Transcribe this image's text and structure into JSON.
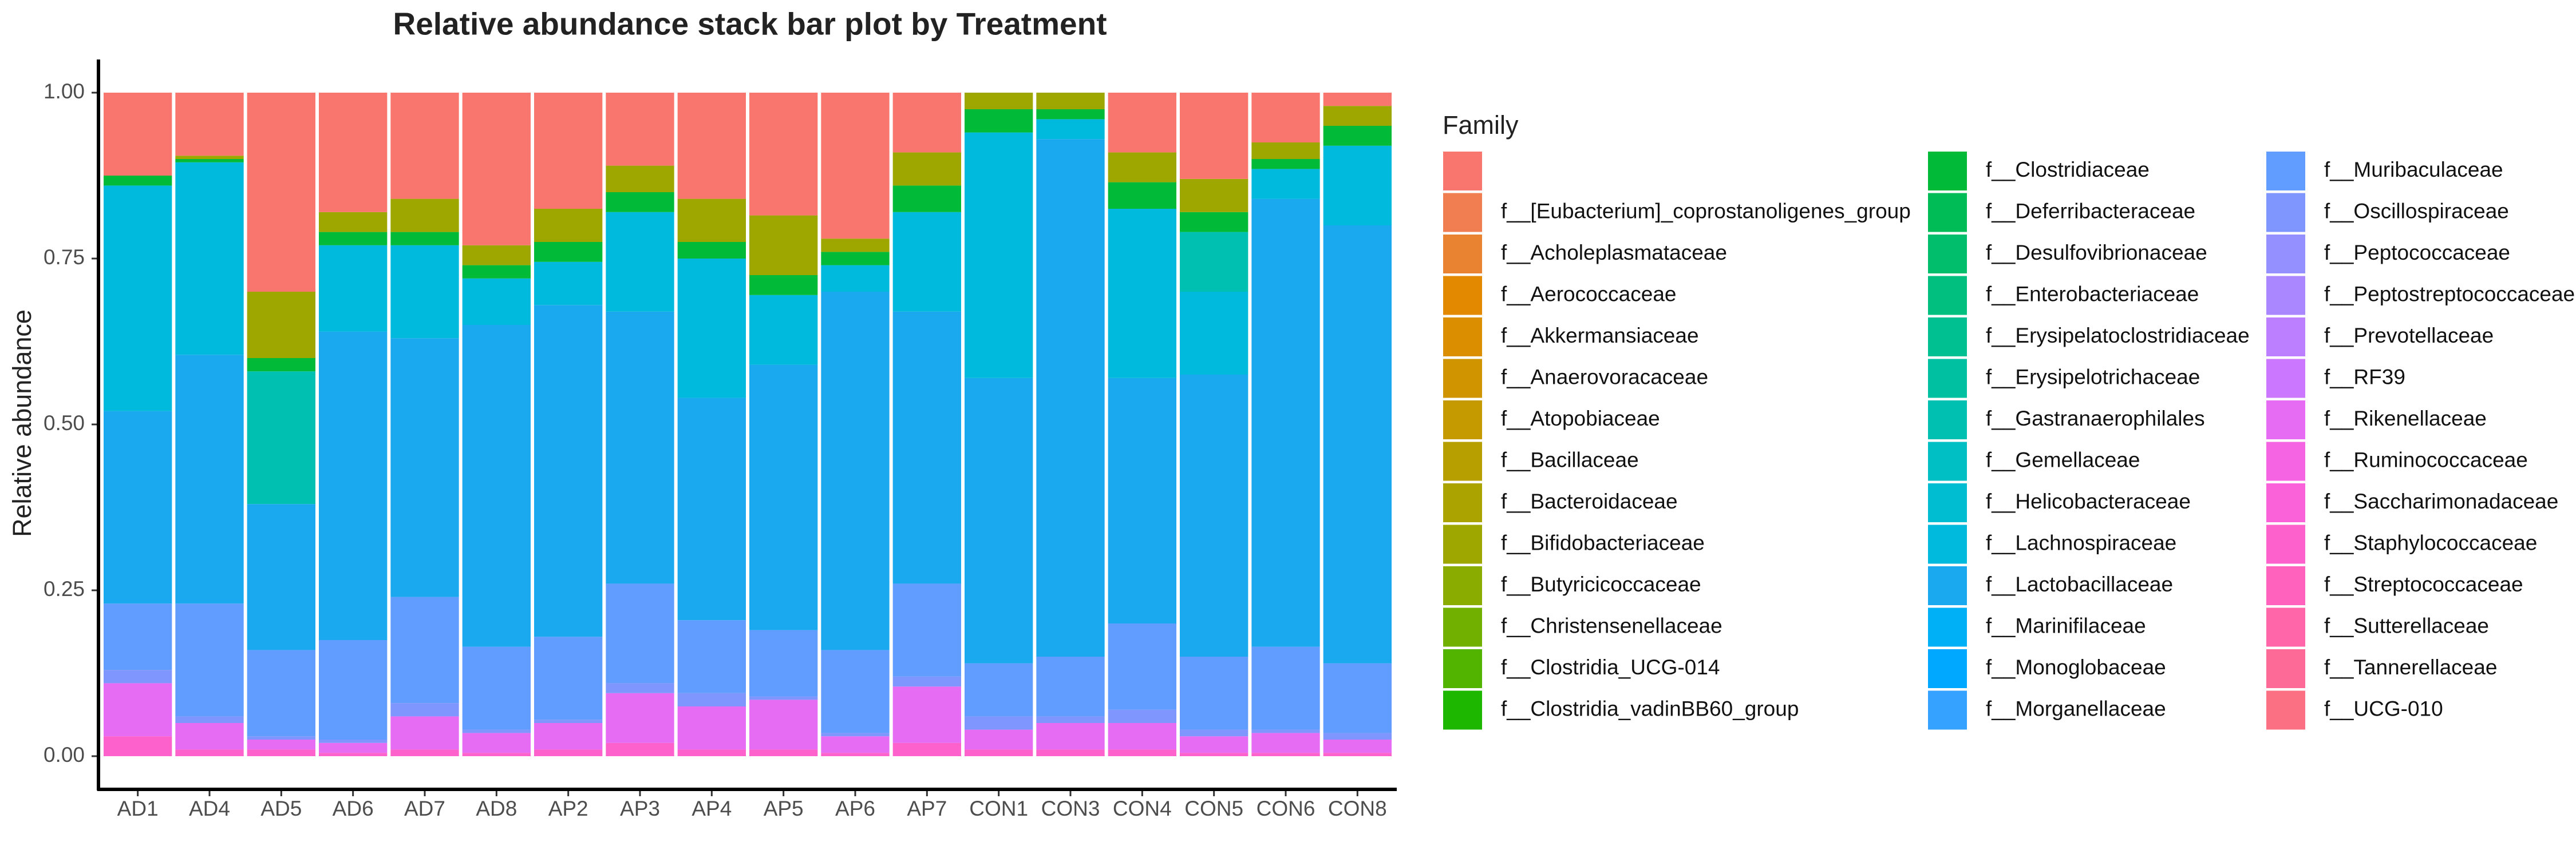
{
  "chart_data": {
    "type": "stacked_bar",
    "title": "Relative abundance stack bar plot by Treatment",
    "y_label": "Relative abundance",
    "legend_title": "Family",
    "categories": [
      "AD1",
      "AD4",
      "AD5",
      "AD6",
      "AD7",
      "AD8",
      "AP2",
      "AP3",
      "AP4",
      "AP5",
      "AP6",
      "AP7",
      "CON1",
      "CON3",
      "CON4",
      "CON5",
      "CON6",
      "CON8"
    ],
    "ylim": [
      -0.05,
      1.05
    ],
    "yticks": [
      {
        "value": 0,
        "label": "0.00"
      },
      {
        "value": 0.25,
        "label": "0.25"
      },
      {
        "value": 0.5,
        "label": "0.50"
      },
      {
        "value": 0.75,
        "label": "0.75"
      },
      {
        "value": 1,
        "label": "1.00"
      }
    ],
    "series": [
      {
        "name": null,
        "color": "#F8766D",
        "values": [
          0.125,
          0.095,
          0.3,
          0.18,
          0.16,
          0.23,
          0.175,
          0.11,
          0.16,
          0.185,
          0.22,
          0.09,
          0,
          0,
          0.09,
          0.13,
          0.075,
          0.02
        ]
      },
      {
        "name": "f__[Eubacterium]_coprostanoligenes_group",
        "color": "#F07E50",
        "values": [
          0,
          0,
          0,
          0,
          0,
          0,
          0,
          0,
          0,
          0,
          0,
          0,
          0,
          0,
          0,
          0,
          0,
          0
        ]
      },
      {
        "name": "f__Acholeplasmataceae",
        "color": "#EA8331",
        "values": [
          0,
          0,
          0,
          0,
          0,
          0,
          0,
          0,
          0,
          0,
          0,
          0,
          0,
          0,
          0,
          0,
          0,
          0
        ]
      },
      {
        "name": "f__Aerococcaceae",
        "color": "#E38900",
        "values": [
          0,
          0,
          0,
          0,
          0,
          0,
          0,
          0,
          0,
          0,
          0,
          0,
          0,
          0,
          0,
          0,
          0,
          0
        ]
      },
      {
        "name": "f__Akkermansiaceae",
        "color": "#DA8E00",
        "values": [
          0,
          0,
          0,
          0,
          0,
          0,
          0,
          0,
          0,
          0,
          0,
          0,
          0,
          0,
          0,
          0,
          0,
          0
        ]
      },
      {
        "name": "f__Anaerovoracaceae",
        "color": "#D09400",
        "values": [
          0,
          0,
          0,
          0,
          0,
          0,
          0,
          0,
          0,
          0,
          0,
          0,
          0,
          0,
          0,
          0,
          0,
          0
        ]
      },
      {
        "name": "f__Atopobiaceae",
        "color": "#C49A00",
        "values": [
          0,
          0,
          0,
          0,
          0,
          0,
          0,
          0,
          0,
          0,
          0,
          0,
          0,
          0,
          0,
          0,
          0,
          0
        ]
      },
      {
        "name": "f__Bacillaceae",
        "color": "#B79F00",
        "values": [
          0,
          0,
          0,
          0,
          0,
          0,
          0,
          0,
          0,
          0,
          0,
          0,
          0,
          0,
          0,
          0,
          0,
          0
        ]
      },
      {
        "name": "f__Bacteroidaceae",
        "color": "#ABA300",
        "values": [
          0,
          0,
          0,
          0,
          0,
          0,
          0,
          0,
          0,
          0,
          0,
          0,
          0,
          0,
          0,
          0,
          0,
          0
        ]
      },
      {
        "name": "f__Bifidobacteriaceae",
        "color": "#9DA700",
        "values": [
          0,
          0.005,
          0.1,
          0.03,
          0.05,
          0.03,
          0.05,
          0.04,
          0.065,
          0.09,
          0.02,
          0.05,
          0.025,
          0.025,
          0.045,
          0.05,
          0.025,
          0.03
        ]
      },
      {
        "name": "f__Butyricicoccaceae",
        "color": "#8AAB00",
        "values": [
          0,
          0,
          0,
          0,
          0,
          0,
          0,
          0,
          0,
          0,
          0,
          0,
          0,
          0,
          0,
          0,
          0,
          0
        ]
      },
      {
        "name": "f__Christensenellaceae",
        "color": "#72B000",
        "values": [
          0,
          0,
          0,
          0,
          0,
          0,
          0,
          0,
          0,
          0,
          0,
          0,
          0,
          0,
          0,
          0,
          0,
          0
        ]
      },
      {
        "name": "f__Clostridia_UCG-014",
        "color": "#53B400",
        "values": [
          0,
          0,
          0,
          0,
          0,
          0,
          0,
          0,
          0,
          0,
          0,
          0,
          0,
          0,
          0,
          0,
          0,
          0
        ]
      },
      {
        "name": "f__Clostridia_vadinBB60_group",
        "color": "#1DB700",
        "values": [
          0,
          0,
          0,
          0,
          0,
          0,
          0,
          0,
          0,
          0,
          0,
          0,
          0,
          0,
          0,
          0,
          0,
          0
        ]
      },
      {
        "name": "f__Clostridiaceae",
        "color": "#00BA38",
        "values": [
          0.015,
          0.005,
          0.02,
          0.02,
          0.02,
          0.02,
          0.03,
          0.03,
          0.025,
          0.03,
          0.02,
          0.04,
          0.035,
          0.015,
          0.04,
          0.03,
          0.015,
          0.03
        ]
      },
      {
        "name": "f__Deferribacteraceae",
        "color": "#00BC56",
        "values": [
          0,
          0,
          0,
          0,
          0,
          0,
          0,
          0,
          0,
          0,
          0,
          0,
          0,
          0,
          0,
          0,
          0,
          0
        ]
      },
      {
        "name": "f__Desulfovibrionaceae",
        "color": "#00BE6C",
        "values": [
          0,
          0,
          0,
          0,
          0,
          0,
          0,
          0,
          0,
          0,
          0,
          0,
          0,
          0,
          0,
          0,
          0,
          0
        ]
      },
      {
        "name": "f__Enterobacteriaceae",
        "color": "#00BF7F",
        "values": [
          0,
          0,
          0,
          0,
          0,
          0,
          0,
          0,
          0,
          0,
          0,
          0,
          0,
          0,
          0,
          0,
          0,
          0
        ]
      },
      {
        "name": "f__Erysipelatoclostridiaceae",
        "color": "#00C091",
        "values": [
          0,
          0,
          0,
          0,
          0,
          0,
          0,
          0,
          0,
          0,
          0,
          0,
          0,
          0,
          0,
          0,
          0,
          0
        ]
      },
      {
        "name": "f__Erysipelotrichaceae",
        "color": "#00C0A2",
        "values": [
          0,
          0,
          0,
          0,
          0,
          0,
          0,
          0,
          0,
          0,
          0,
          0,
          0,
          0,
          0,
          0,
          0,
          0
        ]
      },
      {
        "name": "f__Gastranaerophilales",
        "color": "#00C0B2",
        "values": [
          0,
          0,
          0.2,
          0,
          0,
          0,
          0,
          0,
          0,
          0,
          0,
          0,
          0,
          0,
          0,
          0.09,
          0,
          0
        ]
      },
      {
        "name": "f__Gemellaceae",
        "color": "#00BFC4",
        "values": [
          0,
          0,
          0,
          0,
          0,
          0,
          0,
          0,
          0,
          0,
          0,
          0,
          0,
          0,
          0,
          0,
          0,
          0
        ]
      },
      {
        "name": "f__Helicobacteraceae",
        "color": "#00BDD2",
        "values": [
          0,
          0,
          0,
          0,
          0,
          0,
          0,
          0,
          0,
          0,
          0,
          0,
          0,
          0,
          0,
          0,
          0,
          0
        ]
      },
      {
        "name": "f__Lachnospiraceae",
        "color": "#00BADE",
        "values": [
          0.34,
          0.29,
          0,
          0.13,
          0.14,
          0.07,
          0.065,
          0.15,
          0.21,
          0.105,
          0.04,
          0.15,
          0.37,
          0.03,
          0.255,
          0.125,
          0.045,
          0.12
        ]
      },
      {
        "name": "f__Lactobacillaceae",
        "color": "#1AA9EE",
        "values": [
          0.29,
          0.375,
          0.22,
          0.465,
          0.39,
          0.485,
          0.5,
          0.41,
          0.335,
          0.4,
          0.54,
          0.41,
          0.43,
          0.78,
          0.37,
          0.425,
          0.675,
          0.66
        ]
      },
      {
        "name": "f__Marinifilaceae",
        "color": "#00B0F6",
        "values": [
          0,
          0,
          0,
          0,
          0,
          0,
          0,
          0,
          0,
          0,
          0,
          0,
          0,
          0,
          0,
          0,
          0,
          0
        ]
      },
      {
        "name": "f__Monoglobaceae",
        "color": "#00A9FF",
        "values": [
          0,
          0,
          0,
          0,
          0,
          0,
          0,
          0,
          0,
          0,
          0,
          0,
          0,
          0,
          0,
          0,
          0,
          0
        ]
      },
      {
        "name": "f__Morganellaceae",
        "color": "#35A2FF",
        "values": [
          0,
          0,
          0,
          0,
          0,
          0,
          0,
          0,
          0,
          0,
          0,
          0,
          0,
          0,
          0,
          0,
          0,
          0
        ]
      },
      {
        "name": "f__Muribaculaceae",
        "color": "#619CFF",
        "values": [
          0.1,
          0.17,
          0.13,
          0.15,
          0.16,
          0.125,
          0.125,
          0.15,
          0.11,
          0.1,
          0.125,
          0.14,
          0.08,
          0.09,
          0.13,
          0.11,
          0.125,
          0.105
        ]
      },
      {
        "name": "f__Oscillospiraceae",
        "color": "#7F96FF",
        "values": [
          0.02,
          0.01,
          0.005,
          0.005,
          0.02,
          0.005,
          0.005,
          0.015,
          0.02,
          0.005,
          0.005,
          0.015,
          0.02,
          0.01,
          0.02,
          0.01,
          0.005,
          0.01
        ]
      },
      {
        "name": "f__Peptococcaceae",
        "color": "#9590FF",
        "values": [
          0,
          0,
          0,
          0,
          0,
          0,
          0,
          0,
          0,
          0,
          0,
          0,
          0,
          0,
          0,
          0,
          0,
          0
        ]
      },
      {
        "name": "f__Peptostreptococcaceae",
        "color": "#AA86FF",
        "values": [
          0,
          0,
          0,
          0,
          0,
          0,
          0,
          0,
          0,
          0,
          0,
          0,
          0,
          0,
          0,
          0,
          0,
          0
        ]
      },
      {
        "name": "f__Prevotellaceae",
        "color": "#BC7FFF",
        "values": [
          0,
          0,
          0,
          0,
          0,
          0,
          0,
          0,
          0,
          0,
          0,
          0,
          0,
          0,
          0,
          0,
          0,
          0
        ]
      },
      {
        "name": "f__RF39",
        "color": "#CB77FF",
        "values": [
          0,
          0,
          0,
          0,
          0,
          0,
          0,
          0,
          0,
          0,
          0,
          0,
          0,
          0,
          0,
          0,
          0,
          0
        ]
      },
      {
        "name": "f__Rikenellaceae",
        "color": "#E56CF3",
        "values": [
          0.08,
          0.04,
          0.015,
          0.015,
          0.05,
          0.03,
          0.04,
          0.075,
          0.065,
          0.075,
          0.025,
          0.085,
          0.03,
          0.04,
          0.04,
          0.025,
          0.03,
          0.02
        ]
      },
      {
        "name": "f__Ruminococcaceae",
        "color": "#F564E3",
        "values": [
          0,
          0,
          0,
          0,
          0,
          0,
          0,
          0,
          0,
          0,
          0,
          0,
          0,
          0,
          0,
          0,
          0,
          0
        ]
      },
      {
        "name": "f__Saccharimonadaceae",
        "color": "#F962D9",
        "values": [
          0,
          0,
          0,
          0,
          0,
          0,
          0,
          0,
          0,
          0,
          0,
          0,
          0,
          0,
          0,
          0,
          0,
          0
        ]
      },
      {
        "name": "f__Staphylococcaceae",
        "color": "#FD61CB",
        "values": [
          0.03,
          0.01,
          0.01,
          0.005,
          0.01,
          0.005,
          0.01,
          0.02,
          0.01,
          0.01,
          0.005,
          0.02,
          0.01,
          0.01,
          0.01,
          0.005,
          0.005,
          0.005
        ]
      },
      {
        "name": "f__Streptococcaceae",
        "color": "#FF62BC",
        "values": [
          0,
          0,
          0,
          0,
          0,
          0,
          0,
          0,
          0,
          0,
          0,
          0,
          0,
          0,
          0,
          0,
          0,
          0
        ]
      },
      {
        "name": "f__Sutterellaceae",
        "color": "#FF66A9",
        "values": [
          0,
          0,
          0,
          0,
          0,
          0,
          0,
          0,
          0,
          0,
          0,
          0,
          0,
          0,
          0,
          0,
          0,
          0
        ]
      },
      {
        "name": "f__Tannerellaceae",
        "color": "#FE6A97",
        "values": [
          0,
          0,
          0,
          0,
          0,
          0,
          0,
          0,
          0,
          0,
          0,
          0,
          0,
          0,
          0,
          0,
          0,
          0
        ]
      },
      {
        "name": "f__UCG-010",
        "color": "#FB7082",
        "values": [
          0,
          0,
          0,
          0,
          0,
          0,
          0,
          0,
          0,
          0,
          0,
          0,
          0,
          0,
          0,
          0,
          0,
          0
        ]
      }
    ]
  }
}
